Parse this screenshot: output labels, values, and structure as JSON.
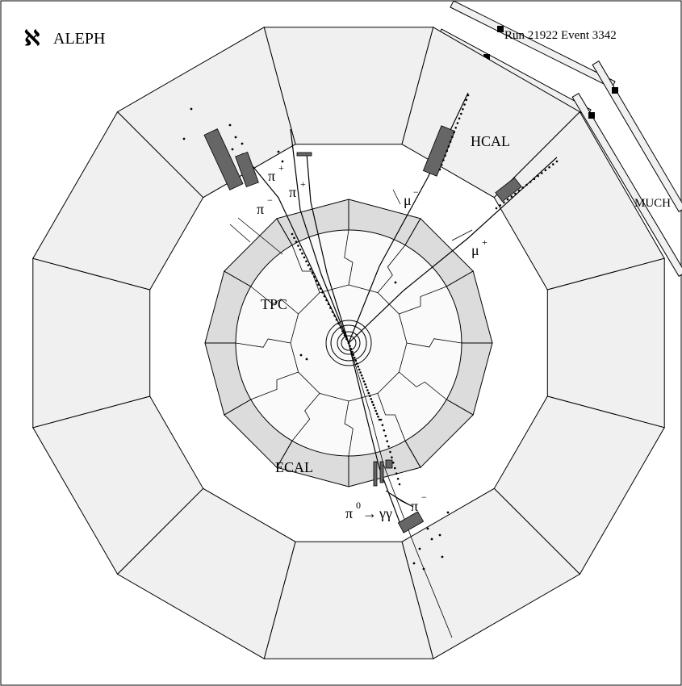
{
  "header": {
    "logo_glyph": "ℵ",
    "experiment": "ALEPH",
    "run_event": "Run 21922 Event 3342"
  },
  "labels": {
    "hcal": "HCAL",
    "much": "MUCH",
    "tpc": "TPC",
    "ecal": "ECAL",
    "pi": "π",
    "mu": "μ",
    "plus": "+",
    "minus": "−",
    "zero": "0",
    "arrow": "→",
    "gamma_gamma": "γγ"
  },
  "colors": {
    "hcal_fill": "#f0f0f0",
    "ecal_fill": "#dcdcdc",
    "tpc_fill": "#fafafa",
    "deposit_fill": "#666666",
    "stroke": "#000000"
  }
}
